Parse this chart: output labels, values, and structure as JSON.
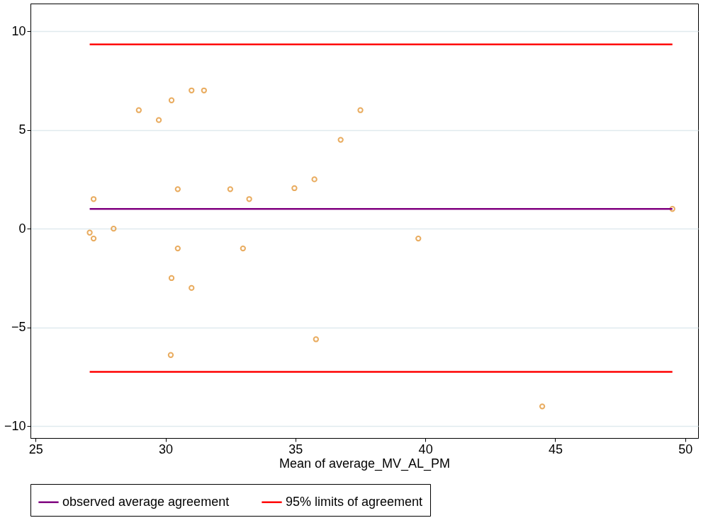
{
  "chart_data": {
    "type": "scatter",
    "xlabel": "Mean of average_MV_AL_PM",
    "xlim": [
      24.8,
      50.5
    ],
    "xticks": [
      25,
      30,
      35,
      40,
      45,
      50
    ],
    "ylim": [
      -10.6,
      11.4
    ],
    "yticks": [
      -10,
      -5,
      0,
      5,
      10
    ],
    "grid": "y",
    "legend": "bottom",
    "series": [
      {
        "type": "scatter",
        "marker": "circle",
        "color": "#e08a1e",
        "x": [
          27.08,
          27.23,
          27.23,
          28.0,
          28.97,
          29.74,
          30.23,
          30.23,
          30.2,
          30.47,
          30.47,
          31.0,
          31.0,
          31.48,
          32.49,
          32.98,
          33.22,
          34.96,
          35.73,
          35.79,
          36.74,
          37.5,
          39.73,
          44.5,
          49.51
        ],
        "values": [
          -0.2,
          1.5,
          -0.5,
          0,
          6,
          5.5,
          6.5,
          -2.5,
          -6.4,
          2,
          -1,
          7,
          -3,
          7,
          2,
          -1,
          1.5,
          2.05,
          2.5,
          -5.6,
          4.5,
          6,
          -0.5,
          -9,
          1
        ]
      },
      {
        "type": "line",
        "name": "observed average agreement",
        "color": "#800080",
        "x": [
          27.08,
          49.51
        ],
        "values": [
          1,
          1
        ]
      },
      {
        "type": "line",
        "name": "95% limits of agreement",
        "color": "#ff0000",
        "x": [
          27.08,
          49.51
        ],
        "values": [
          9.33,
          9.33
        ]
      },
      {
        "type": "line",
        "color": "#ff0000",
        "x": [
          27.08,
          49.51
        ],
        "values": [
          -7.25,
          -7.25
        ]
      }
    ]
  }
}
